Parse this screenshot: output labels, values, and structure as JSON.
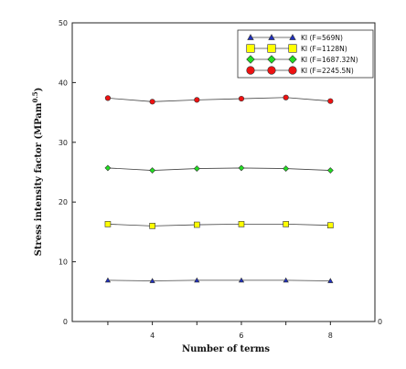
{
  "chart_data": {
    "type": "line",
    "xlabel": "Number of terms",
    "ylabel_main": "Stress intensity factor (MPam",
    "ylabel_sup": "0.5",
    "ylabel_end": ")",
    "x": [
      3,
      4,
      5,
      6,
      7,
      8
    ],
    "xlim": [
      2.2,
      9.0
    ],
    "ylim": [
      0,
      50
    ],
    "x_ticks": [
      4,
      6,
      8
    ],
    "y_ticks": [
      0,
      10,
      20,
      30,
      40,
      50
    ],
    "right_zero_label": "0",
    "grid": false,
    "legend_position": "top-right",
    "series": [
      {
        "name": "KI (F=569N)",
        "marker": "triangle",
        "color": "#1f2fbf",
        "values": [
          6.9,
          6.8,
          6.9,
          6.9,
          6.9,
          6.8
        ]
      },
      {
        "name": "KI (F=1128N)",
        "marker": "square",
        "color": "#ffff00",
        "values": [
          16.3,
          16.0,
          16.2,
          16.3,
          16.3,
          16.1
        ]
      },
      {
        "name": "KI (F=1687.32N)",
        "marker": "diamond",
        "color": "#22dd22",
        "values": [
          25.7,
          25.3,
          25.6,
          25.7,
          25.6,
          25.3
        ]
      },
      {
        "name": "KI (F=2245.5N)",
        "marker": "circle",
        "color": "#ee1111",
        "values": [
          37.4,
          36.8,
          37.1,
          37.3,
          37.5,
          36.9
        ]
      }
    ]
  }
}
